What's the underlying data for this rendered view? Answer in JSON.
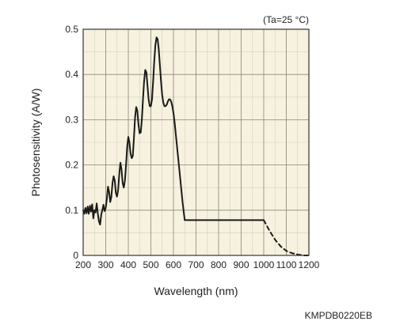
{
  "chart_data": {
    "type": "line",
    "title": "",
    "annotation": "(Ta=25 °C)",
    "figure_code": "KMPDB0220EB",
    "xlabel": "Wavelength (nm)",
    "ylabel": "Photosensitivity (A/W)",
    "xlim": [
      200,
      1200
    ],
    "ylim": [
      0,
      0.5
    ],
    "x_ticks": [
      200,
      300,
      400,
      500,
      600,
      700,
      800,
      900,
      1000,
      1100,
      1200
    ],
    "y_ticks": [
      0,
      0.1,
      0.2,
      0.3,
      0.4,
      0.5
    ],
    "y_tick_labels": [
      "0",
      "0.1",
      "0.2",
      "0.3",
      "0.4",
      "0.5"
    ],
    "x_minor_step": 50,
    "y_minor_step": 0.05,
    "grid": true,
    "background": "#f6f2df",
    "line_color": "#1a1a1a",
    "series": [
      {
        "style": "solid",
        "x": [
          200,
          205,
          210,
          215,
          220,
          225,
          230,
          235,
          240,
          245,
          250,
          255,
          260,
          265,
          270,
          275,
          280,
          285,
          290,
          295,
          300,
          305,
          310,
          315,
          320,
          325,
          330,
          335,
          340,
          345,
          350,
          355,
          360,
          365,
          370,
          375,
          380,
          385,
          390,
          395,
          400,
          405,
          410,
          415,
          420,
          425,
          430,
          435,
          440,
          445,
          450,
          455,
          460,
          465,
          470,
          475,
          480,
          485,
          490,
          495,
          500,
          505,
          510,
          515,
          520,
          525,
          530,
          535,
          540,
          545,
          550,
          555,
          560,
          565,
          570,
          575,
          580,
          585,
          590,
          595,
          600,
          605,
          610,
          615,
          620,
          625,
          630,
          635,
          640,
          645,
          650,
          655,
          660,
          665,
          670,
          675,
          680,
          685,
          690,
          695,
          700,
          705,
          710,
          715,
          720,
          725,
          730,
          735,
          740,
          745,
          750,
          755,
          760,
          765,
          770,
          775,
          780,
          785,
          790,
          795,
          800,
          805,
          810,
          815,
          820,
          825,
          830,
          835,
          840,
          845,
          850,
          855,
          860,
          865,
          870,
          875,
          880,
          885,
          890,
          895,
          900,
          905,
          910,
          915,
          920,
          925,
          930,
          935,
          940,
          945,
          950,
          955,
          960,
          965,
          970,
          975,
          980,
          985,
          990,
          995,
          1000
        ],
        "y": [
          0.1,
          0.092,
          0.105,
          0.093,
          0.108,
          0.092,
          0.11,
          0.097,
          0.113,
          0.082,
          0.1,
          0.095,
          0.115,
          0.092,
          0.075,
          0.068,
          0.09,
          0.1,
          0.112,
          0.098,
          0.105,
          0.125,
          0.152,
          0.14,
          0.118,
          0.13,
          0.16,
          0.175,
          0.165,
          0.138,
          0.13,
          0.145,
          0.18,
          0.205,
          0.19,
          0.16,
          0.15,
          0.165,
          0.2,
          0.24,
          0.262,
          0.25,
          0.225,
          0.215,
          0.22,
          0.26,
          0.305,
          0.328,
          0.32,
          0.29,
          0.27,
          0.272,
          0.3,
          0.345,
          0.385,
          0.41,
          0.405,
          0.375,
          0.345,
          0.33,
          0.33,
          0.345,
          0.385,
          0.43,
          0.465,
          0.482,
          0.478,
          0.455,
          0.42,
          0.385,
          0.355,
          0.338,
          0.33,
          0.33,
          0.333,
          0.34,
          0.345,
          0.345,
          0.34,
          0.33,
          0.315,
          0.295,
          0.27,
          0.245,
          0.22,
          0.195,
          0.17,
          0.145,
          0.12,
          0.098,
          0.078,
          0.078,
          0.078,
          0.078,
          0.078,
          0.078,
          0.078,
          0.078,
          0.078,
          0.078,
          0.078,
          0.078,
          0.078,
          0.078,
          0.078,
          0.078,
          0.078,
          0.078,
          0.078,
          0.078,
          0.078,
          0.078,
          0.078,
          0.078,
          0.078,
          0.078,
          0.078,
          0.078,
          0.078,
          0.078,
          0.078,
          0.078,
          0.078,
          0.078,
          0.078,
          0.078,
          0.078,
          0.078,
          0.078,
          0.078,
          0.078,
          0.078,
          0.078,
          0.078,
          0.078,
          0.078,
          0.078,
          0.078,
          0.078,
          0.078,
          0.078,
          0.078,
          0.078,
          0.078,
          0.078,
          0.078,
          0.078,
          0.078,
          0.078,
          0.078,
          0.078,
          0.078,
          0.078,
          0.078,
          0.078,
          0.078,
          0.078,
          0.078,
          0.078,
          0.078,
          0.078
        ]
      },
      {
        "style": "dashed",
        "x": [
          1000,
          1025,
          1050,
          1075,
          1100,
          1125,
          1150,
          1175,
          1200
        ],
        "y": [
          0.078,
          0.055,
          0.035,
          0.02,
          0.01,
          0.005,
          0.002,
          0.0,
          0.0
        ]
      }
    ]
  }
}
